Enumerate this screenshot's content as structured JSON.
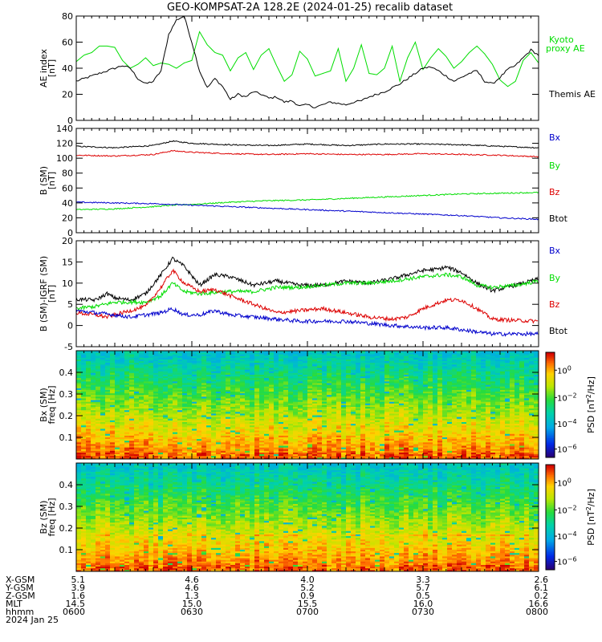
{
  "title": "GEO-KOMPSAT-2A 128.2E (2024-01-25) recalib dataset",
  "colors": {
    "black": "#000000",
    "red": "#dd0000",
    "green": "#00dd00",
    "blue": "#0000cc"
  },
  "chart_data": [
    {
      "type": "line",
      "name": "ae-index-panel",
      "ylabel": "AE index [nT]",
      "ylim": [
        0,
        80
      ],
      "yticks": [
        0,
        20,
        40,
        60,
        80
      ],
      "legend": [
        "Kyoto proxy AE",
        "Themis AE"
      ],
      "series": [
        {
          "name": "Kyoto proxy AE",
          "color": "#00dd00",
          "x": [
            0,
            2,
            4,
            6,
            8,
            10,
            12,
            14,
            16,
            18,
            20,
            22,
            24,
            26,
            28,
            30,
            32,
            34,
            36,
            38,
            40,
            42,
            44,
            46,
            48,
            50,
            52,
            54,
            56,
            58,
            60,
            62,
            64,
            66,
            68,
            70,
            72,
            74,
            76,
            78,
            80,
            82,
            84,
            86,
            88,
            90,
            92,
            94,
            96,
            98,
            100,
            102,
            104,
            106,
            108,
            110,
            112,
            114,
            116,
            118,
            120
          ],
          "values": [
            45,
            50,
            52,
            57,
            57,
            56,
            46,
            40,
            43,
            48,
            42,
            44,
            43,
            40,
            44,
            46,
            68,
            58,
            52,
            50,
            38,
            48,
            52,
            39,
            50,
            55,
            42,
            30,
            35,
            53,
            47,
            34,
            36,
            38,
            55,
            30,
            40,
            58,
            36,
            35,
            40,
            57,
            30,
            48,
            60,
            39,
            48,
            55,
            49,
            40,
            45,
            52,
            57,
            51,
            43,
            31,
            26,
            30,
            46,
            52,
            44
          ]
        },
        {
          "name": "Themis AE",
          "color": "#000000",
          "x": [
            0,
            2,
            4,
            6,
            8,
            10,
            12,
            14,
            16,
            18,
            20,
            22,
            24,
            26,
            28,
            30,
            32,
            34,
            36,
            38,
            40,
            42,
            44,
            46,
            48,
            50,
            52,
            54,
            56,
            58,
            60,
            62,
            64,
            66,
            68,
            70,
            72,
            74,
            76,
            78,
            80,
            82,
            84,
            86,
            88,
            90,
            92,
            94,
            96,
            98,
            100,
            102,
            104,
            106,
            108,
            110,
            112,
            114,
            116,
            118,
            120
          ],
          "values": [
            30,
            32,
            34,
            36,
            38,
            40,
            42,
            40,
            32,
            28,
            30,
            38,
            66,
            77,
            80,
            60,
            38,
            25,
            32,
            26,
            16,
            20,
            18,
            22,
            20,
            17,
            18,
            14,
            15,
            11,
            12,
            10,
            12,
            14,
            13,
            12,
            14,
            15,
            18,
            20,
            22,
            25,
            28,
            32,
            36,
            40,
            41,
            38,
            34,
            30,
            33,
            36,
            38,
            30,
            28,
            33,
            39,
            42,
            48,
            54,
            50
          ]
        }
      ]
    },
    {
      "type": "line",
      "name": "b-sm-panel",
      "ylabel": "B (SM) [nT]",
      "ylim": [
        0,
        140
      ],
      "yticks": [
        0,
        20,
        40,
        60,
        80,
        100,
        120,
        140
      ],
      "legend": [
        "Bx",
        "By",
        "Bz",
        "Btot"
      ],
      "series": [
        {
          "name": "Btot",
          "color": "#000000",
          "x": [
            0,
            10,
            20,
            25,
            30,
            40,
            50,
            60,
            70,
            80,
            90,
            100,
            110,
            120
          ],
          "values": [
            116,
            114,
            117,
            123,
            120,
            118,
            117,
            119,
            117,
            119,
            119,
            118,
            116,
            114
          ]
        },
        {
          "name": "Bz",
          "color": "#dd0000",
          "x": [
            0,
            10,
            20,
            25,
            30,
            40,
            50,
            60,
            70,
            80,
            90,
            100,
            110,
            120
          ],
          "values": [
            104,
            103,
            105,
            110,
            108,
            106,
            105,
            106,
            105,
            105,
            106,
            105,
            104,
            102
          ]
        },
        {
          "name": "By",
          "color": "#00dd00",
          "x": [
            0,
            10,
            20,
            25,
            30,
            40,
            50,
            60,
            70,
            80,
            90,
            100,
            110,
            120
          ],
          "values": [
            31,
            32,
            35,
            37,
            38,
            41,
            43,
            44,
            46,
            48,
            50,
            52,
            53,
            54
          ]
        },
        {
          "name": "Bx",
          "color": "#0000cc",
          "x": [
            0,
            10,
            20,
            25,
            30,
            40,
            50,
            60,
            70,
            80,
            90,
            100,
            110,
            120
          ],
          "values": [
            41,
            40,
            39,
            38,
            37,
            35,
            33,
            31,
            29,
            27,
            25,
            23,
            20,
            18
          ]
        }
      ]
    },
    {
      "type": "line",
      "name": "b-igrf-panel",
      "ylabel": "B (SM)-IGRF (SM) [nT]",
      "ylim": [
        -5,
        20
      ],
      "yticks": [
        -5,
        0,
        5,
        10,
        15,
        20
      ],
      "legend": [
        "Bx",
        "By",
        "Bz",
        "Btot"
      ],
      "series": [
        {
          "name": "Btot",
          "color": "#000000",
          "x": [
            0,
            5,
            8,
            10,
            14,
            18,
            22,
            25,
            28,
            32,
            36,
            40,
            46,
            52,
            58,
            64,
            70,
            76,
            82,
            86,
            90,
            94,
            96,
            100,
            104,
            108,
            114,
            120
          ],
          "values": [
            6.2,
            6,
            7.5,
            6.5,
            6,
            7.5,
            12,
            15.8,
            14,
            9.5,
            12,
            11.5,
            9.5,
            10.5,
            9.5,
            9.5,
            10.5,
            10,
            11,
            12,
            13,
            13.3,
            13.8,
            12.5,
            10,
            8.2,
            9.5,
            11
          ]
        },
        {
          "name": "By",
          "color": "#00dd00",
          "x": [
            0,
            5,
            10,
            14,
            18,
            22,
            25,
            28,
            32,
            36,
            40,
            46,
            52,
            58,
            64,
            70,
            76,
            82,
            86,
            90,
            96,
            100,
            104,
            108,
            114,
            120
          ],
          "values": [
            4,
            4.5,
            5.5,
            5.5,
            5.5,
            7,
            10,
            8,
            7.5,
            7.8,
            8,
            8,
            9,
            9,
            9.5,
            10,
            10,
            10.5,
            11,
            11.5,
            12,
            11.5,
            9.5,
            9,
            9.5,
            10.5
          ]
        },
        {
          "name": "Bz",
          "color": "#dd0000",
          "x": [
            0,
            5,
            8,
            10,
            14,
            18,
            22,
            25,
            28,
            32,
            36,
            40,
            46,
            52,
            58,
            64,
            70,
            76,
            82,
            86,
            90,
            96,
            100,
            104,
            108,
            114,
            120
          ],
          "values": [
            3,
            2.5,
            2,
            2.5,
            3.5,
            4.5,
            9,
            13,
            10,
            8,
            8.5,
            7,
            5,
            3,
            3.5,
            4,
            3,
            2,
            1.5,
            2,
            4,
            6,
            6,
            4,
            1.5,
            1.2,
            1
          ]
        },
        {
          "name": "Bx",
          "color": "#0000cc",
          "x": [
            0,
            5,
            10,
            14,
            18,
            22,
            25,
            28,
            32,
            36,
            40,
            46,
            52,
            58,
            64,
            70,
            76,
            82,
            90,
            96,
            100,
            104,
            108,
            114,
            120
          ],
          "values": [
            3.5,
            3,
            2.5,
            2,
            2.5,
            3,
            4,
            2.5,
            2.5,
            3.5,
            2.5,
            2,
            1.5,
            1,
            1,
            1,
            0.5,
            0,
            -0.5,
            -0.5,
            -1,
            -1.5,
            -2,
            -2,
            -2
          ]
        }
      ]
    },
    {
      "type": "heatmap",
      "name": "bx-spectrogram",
      "ylabel": "Bx (SM) freq [Hz]",
      "ylim": [
        0,
        0.5
      ],
      "yticks": [
        0.1,
        0.2,
        0.3,
        0.4
      ],
      "colorbar_label": "PSD [nT^2/Hz]",
      "colorbar_ticks": [
        "10^0",
        "10^-2",
        "10^-4",
        "10^-6"
      ]
    },
    {
      "type": "heatmap",
      "name": "bz-spectrogram",
      "ylabel": "Bz (SM) freq [Hz]",
      "ylim": [
        0,
        0.5
      ],
      "yticks": [
        0.1,
        0.2,
        0.3,
        0.4
      ],
      "colorbar_label": "PSD [nT^2/Hz]",
      "colorbar_ticks": [
        "10^0",
        "10^-2",
        "10^-4",
        "10^-6"
      ]
    }
  ],
  "ephemeris": {
    "labels": [
      "X-GSM",
      "Y-GSM",
      "Z-GSM",
      "MLT",
      "hhmm",
      "2024 Jan 25"
    ],
    "columns": [
      {
        "x": 0,
        "values": [
          "5.1",
          "3.9",
          "1.6",
          "14.5",
          "0600"
        ]
      },
      {
        "x": 30,
        "values": [
          "4.6",
          "4.6",
          "1.3",
          "15.0",
          "0630"
        ]
      },
      {
        "x": 60,
        "values": [
          "4.0",
          "5.2",
          "0.9",
          "15.5",
          "0700"
        ]
      },
      {
        "x": 90,
        "values": [
          "3.3",
          "5.7",
          "0.5",
          "16.0",
          "0730"
        ]
      },
      {
        "x": 120,
        "values": [
          "2.6",
          "6.1",
          "0.2",
          "16.6",
          "0800"
        ]
      }
    ]
  }
}
